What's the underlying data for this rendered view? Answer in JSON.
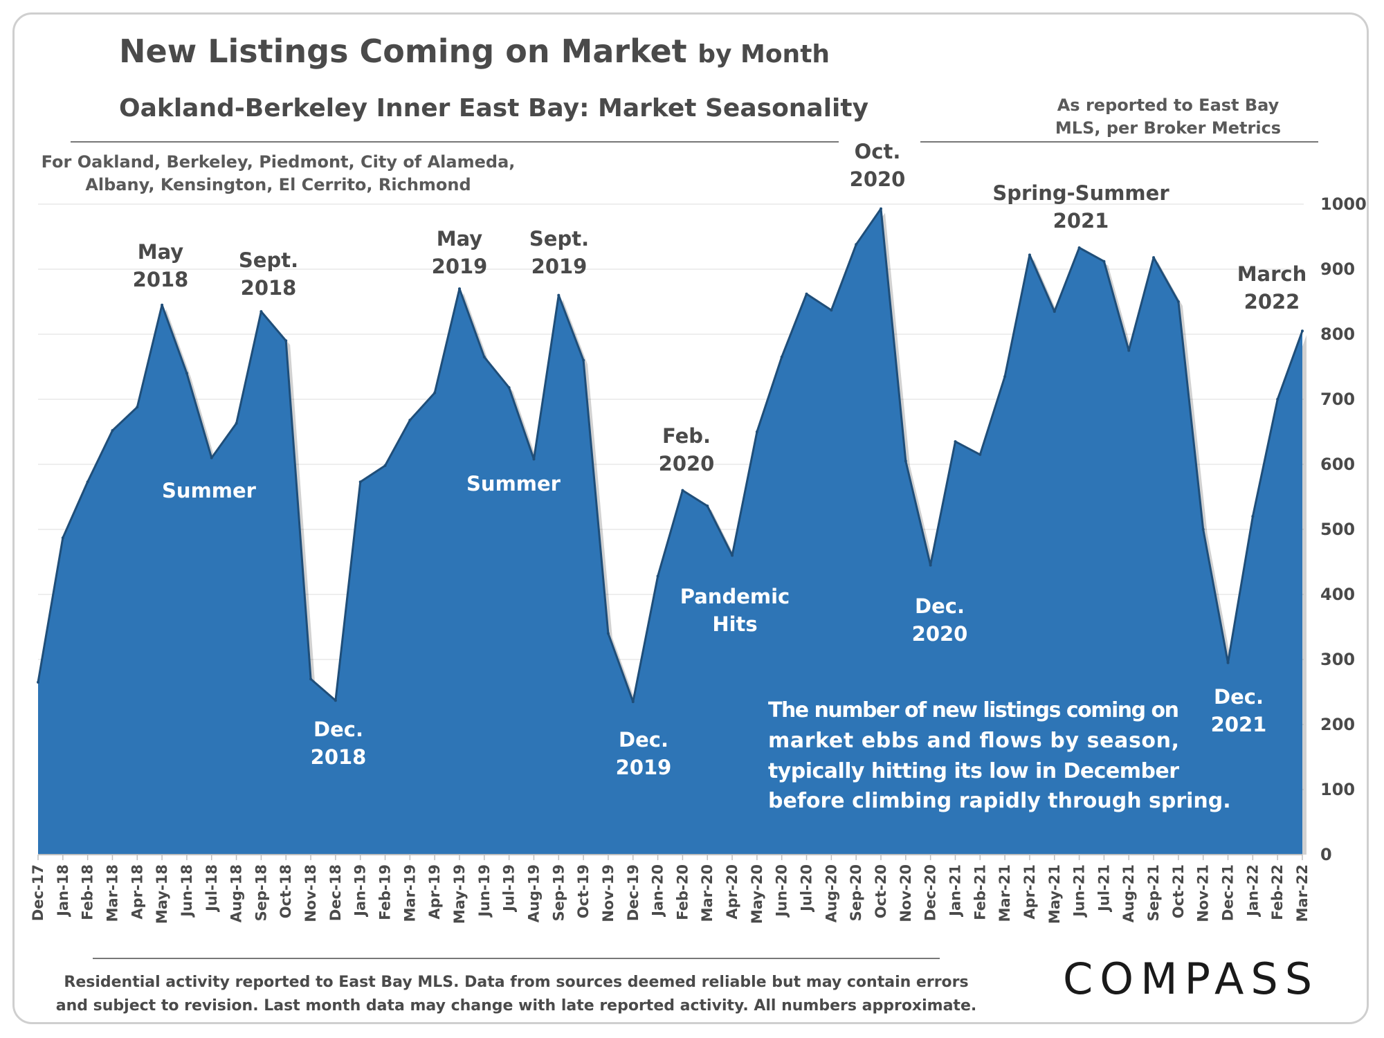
{
  "header": {
    "title_main": "New Listings Coming on Market",
    "title_suffix": "by Month",
    "subtitle": "Oakland-Berkeley Inner East Bay: Market Seasonality",
    "source_line1": "As reported to East Bay",
    "source_line2": "MLS, per Broker Metrics",
    "coverage_line1": "For Oakland, Berkeley, Piedmont, City of Alameda,",
    "coverage_line2": "Albany, Kensington, El Cerrito, Richmond"
  },
  "colors": {
    "area_fill": "#2e75b6",
    "area_edge": "#1f4e79",
    "text_dark": "#4a4a4a",
    "annotation_light": "#ffffff",
    "grid": "#e8e8e8"
  },
  "chart_data": {
    "type": "area",
    "x": [
      "Dec-17",
      "Jan-18",
      "Feb-18",
      "Mar-18",
      "Apr-18",
      "May-18",
      "Jun-18",
      "Jul-18",
      "Aug-18",
      "Sep-18",
      "Oct-18",
      "Nov-18",
      "Dec-18",
      "Jan-19",
      "Feb-19",
      "Mar-19",
      "Apr-19",
      "May-19",
      "Jun-19",
      "Jul-19",
      "Aug-19",
      "Sep-19",
      "Oct-19",
      "Nov-19",
      "Dec-19",
      "Jan-20",
      "Feb-20",
      "Mar-20",
      "Apr-20",
      "May-20",
      "Jun-20",
      "Jul-20",
      "Aug-20",
      "Sep-20",
      "Oct-20",
      "Nov-20",
      "Dec-20",
      "Jan-21",
      "Feb-21",
      "Mar-21",
      "Apr-21",
      "May-21",
      "Jun-21",
      "Jul-21",
      "Aug-21",
      "Sep-21",
      "Oct-21",
      "Nov-21",
      "Dec-21",
      "Jan-22",
      "Feb-22",
      "Mar-22"
    ],
    "values": [
      265,
      487,
      573,
      652,
      688,
      845,
      740,
      610,
      663,
      835,
      790,
      270,
      237,
      573,
      598,
      668,
      710,
      870,
      765,
      718,
      608,
      860,
      760,
      340,
      235,
      428,
      560,
      536,
      460,
      650,
      765,
      862,
      837,
      938,
      993,
      605,
      445,
      635,
      615,
      735,
      922,
      835,
      933,
      912,
      775,
      918,
      850,
      500,
      295,
      520,
      700,
      805
    ],
    "ylim": [
      0,
      1000
    ],
    "yticks": [
      0,
      100,
      200,
      300,
      400,
      500,
      600,
      700,
      800,
      900,
      1000
    ],
    "y_axis_side": "right",
    "grid": true,
    "legend": "none"
  },
  "annotations": {
    "may2018": [
      "May",
      "2018"
    ],
    "sept2018": [
      "Sept.",
      "2018"
    ],
    "summer2018": "Summer",
    "dec2018": [
      "Dec.",
      "2018"
    ],
    "may2019": [
      "May",
      "2019"
    ],
    "sept2019": [
      "Sept.",
      "2019"
    ],
    "summer2019": "Summer",
    "dec2019": [
      "Dec.",
      "2019"
    ],
    "feb2020": [
      "Feb.",
      "2020"
    ],
    "pandemic": [
      "Pandemic",
      "Hits"
    ],
    "oct2020": [
      "Oct.",
      "2020"
    ],
    "dec2020": [
      "Dec.",
      "2020"
    ],
    "spring2021": [
      "Spring-Summer",
      "2021"
    ],
    "march2022": [
      "March",
      "2022"
    ],
    "dec2021": [
      "Dec.",
      "2021"
    ]
  },
  "description": [
    "The number of new listings coming on",
    "market ebbs and flows by season,",
    "typically hitting its low in December",
    "before climbing rapidly through spring."
  ],
  "footer": {
    "line1": "Residential activity reported to East Bay MLS. Data from sources deemed reliable but may contain errors",
    "line2": "and subject to revision. Last month data may change with late reported activity. All numbers approximate."
  },
  "logo": {
    "text": "COMPASS"
  }
}
